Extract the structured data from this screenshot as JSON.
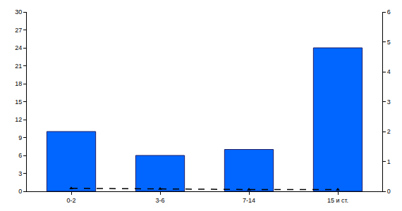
{
  "chart_data": {
    "type": "bar",
    "categories": [
      "0-2",
      "3-6",
      "7-14",
      "15 и ст."
    ],
    "series": [
      {
        "type": "bar",
        "color": "#0066ff",
        "values": [
          10,
          6,
          7,
          24
        ]
      },
      {
        "type": "line",
        "axis": "y2",
        "color": "#000000",
        "line_style": "dash",
        "marker": "triangle-up",
        "values": [
          0.1,
          0.08,
          0.06,
          0.06
        ]
      }
    ],
    "ylim": [
      0,
      30
    ],
    "yticks": [
      0,
      3,
      6,
      9,
      12,
      15,
      18,
      21,
      24,
      27,
      30
    ],
    "y2lim": [
      0,
      6
    ],
    "y2ticks": [
      0,
      1,
      2,
      3,
      4,
      5,
      6
    ],
    "grid": false
  }
}
